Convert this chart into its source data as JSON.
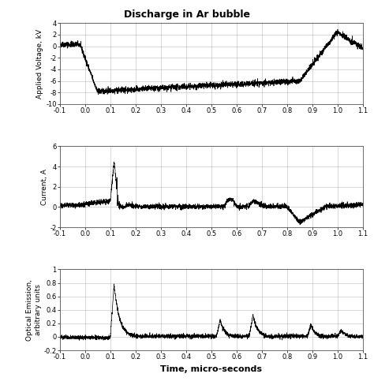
{
  "title": "Discharge in Ar bubble",
  "title_fontsize": 9,
  "xlabel": "Time, micro-seconds",
  "xlabel_fontsize": 8,
  "subplot1_ylabel": "Applied Voltage, kV",
  "subplot2_ylabel": "Current, A",
  "subplot3_ylabel": "Optical Emission,\narbitrary units",
  "ylabel_fontsize": 6.5,
  "xlim": [
    -0.1,
    1.1
  ],
  "xticks": [
    -0.1,
    0.0,
    0.1,
    0.2,
    0.3,
    0.4,
    0.5,
    0.6,
    0.7,
    0.8,
    0.9,
    1.0,
    1.1
  ],
  "xtick_labels": [
    "-0.1",
    "0.0",
    "0.1",
    "0.2",
    "0.3",
    "0.4",
    "0.5",
    "0.6",
    "0.7",
    "0.8",
    "0.9",
    "1.0",
    "1.1"
  ],
  "ylim1": [
    -10,
    4
  ],
  "yticks1": [
    -10,
    -8,
    -6,
    -4,
    -2,
    0,
    2,
    4
  ],
  "ytick_labels1": [
    "-10",
    "-8",
    "-6",
    "-4",
    "-2",
    "0",
    "2",
    "4"
  ],
  "ylim2": [
    -2,
    6
  ],
  "yticks2": [
    -2,
    0,
    2,
    4,
    6
  ],
  "ytick_labels2": [
    "-2",
    "0",
    "2",
    "4",
    "6"
  ],
  "ylim3": [
    -0.2,
    1.0
  ],
  "yticks3": [
    -0.2,
    0.0,
    0.2,
    0.4,
    0.6,
    0.8,
    1.0
  ],
  "ytick_labels3": [
    "-0.2",
    "0",
    "0.2",
    "0.4",
    "0.6",
    "0.8",
    "1"
  ],
  "line_color": "#000000",
  "bg_color": "#ffffff",
  "grid_color": "#bbbbbb",
  "tick_fontsize": 6
}
